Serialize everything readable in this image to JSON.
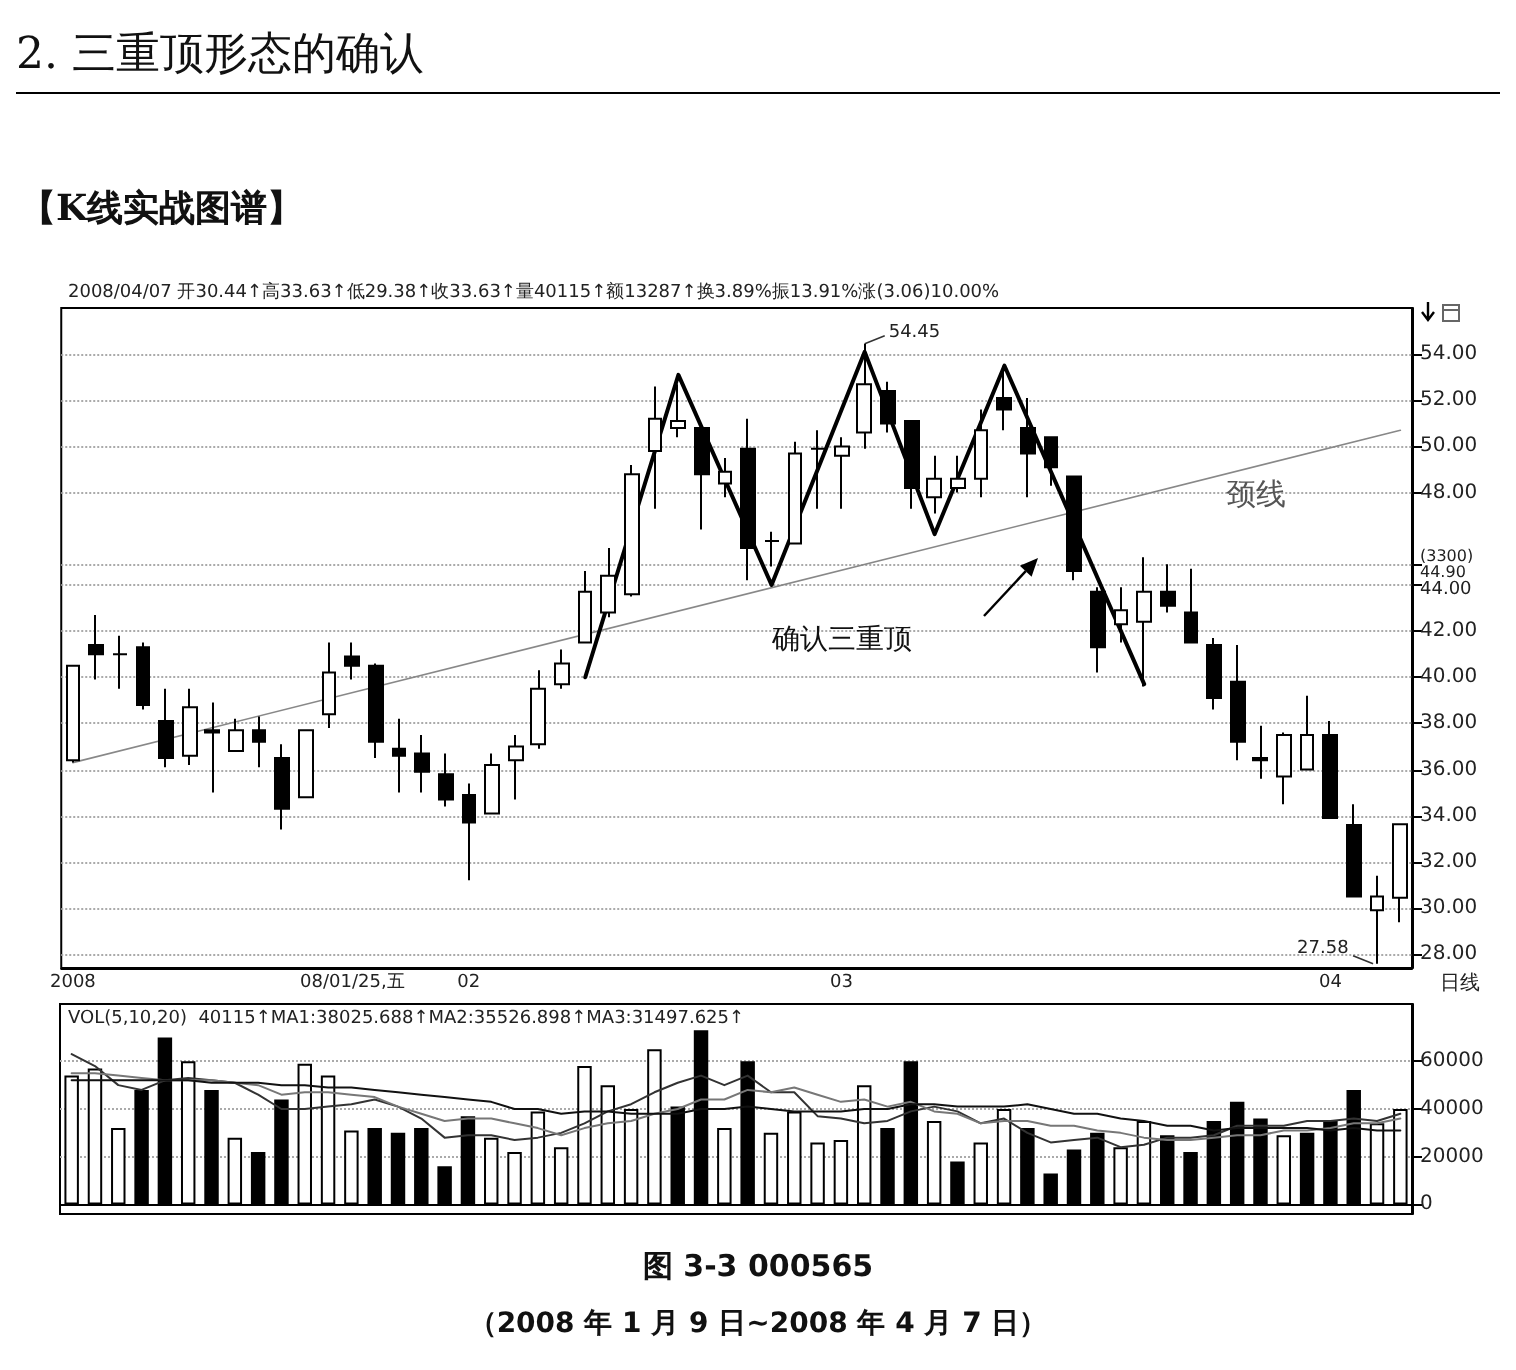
{
  "chart_data": [
    {
      "type": "candlestick",
      "title": "2. 三重顶形态的确认",
      "subtitle": "【K线实战图谱】",
      "categories": [
        "2008",
        null,
        null,
        null,
        null,
        null,
        null,
        null,
        null,
        null,
        null,
        null,
        "08/01/25,五",
        null,
        null,
        null,
        null,
        "02",
        null,
        null,
        null,
        null,
        null,
        null,
        null,
        null,
        null,
        null,
        null,
        null,
        null,
        null,
        null,
        "03",
        null,
        null,
        null,
        null,
        null,
        null,
        null,
        null,
        null,
        null,
        null,
        null,
        null,
        null,
        null,
        null,
        null,
        null,
        null,
        null,
        "04",
        null,
        null,
        null
      ],
      "series": [
        {
          "type": "candlestick",
          "color": "#000000",
          "ohlc": [
            [
              36.4,
              40.5,
              36.3,
              40.5
            ],
            [
              41.4,
              42.7,
              39.9,
              41.0
            ],
            [
              41.0,
              41.8,
              39.5,
              41.0
            ],
            [
              41.3,
              41.5,
              38.6,
              38.8
            ],
            [
              38.1,
              39.5,
              36.1,
              36.5
            ],
            [
              36.6,
              39.5,
              36.2,
              38.7
            ],
            [
              37.7,
              38.9,
              35.0,
              37.6
            ],
            [
              36.8,
              38.2,
              36.8,
              37.7
            ],
            [
              37.7,
              38.3,
              36.1,
              37.2
            ],
            [
              36.5,
              37.1,
              33.4,
              34.3
            ],
            [
              34.8,
              37.7,
              34.8,
              37.7
            ],
            [
              38.4,
              41.5,
              37.8,
              40.2
            ],
            [
              40.9,
              41.5,
              39.9,
              40.5
            ],
            [
              40.5,
              40.6,
              36.5,
              37.2
            ],
            [
              36.9,
              38.2,
              35.0,
              36.6
            ],
            [
              36.7,
              37.5,
              35.0,
              35.9
            ],
            [
              35.8,
              36.7,
              34.4,
              34.7
            ],
            [
              34.9,
              35.4,
              31.2,
              33.7
            ],
            [
              34.1,
              36.7,
              34.1,
              36.2
            ],
            [
              36.4,
              37.5,
              34.7,
              37.0
            ],
            [
              37.1,
              40.3,
              36.9,
              39.5
            ],
            [
              39.7,
              41.2,
              39.5,
              40.6
            ],
            [
              41.5,
              44.6,
              41.5,
              43.7
            ],
            [
              42.8,
              45.6,
              42.6,
              44.4
            ],
            [
              43.6,
              49.2,
              43.5,
              48.8
            ],
            [
              49.8,
              52.6,
              47.3,
              51.2
            ],
            [
              50.8,
              52.7,
              50.4,
              51.1
            ],
            [
              50.8,
              50.8,
              46.4,
              48.8
            ],
            [
              48.4,
              49.5,
              47.8,
              48.9
            ],
            [
              49.9,
              51.2,
              44.2,
              45.6
            ],
            [
              45.9,
              46.3,
              44.8,
              45.9
            ],
            [
              45.8,
              50.2,
              45.8,
              49.7
            ],
            [
              49.9,
              50.7,
              47.3,
              49.9
            ],
            [
              49.6,
              50.4,
              47.3,
              50.0
            ],
            [
              50.6,
              54.45,
              49.9,
              52.7
            ],
            [
              52.4,
              52.8,
              50.6,
              51.0
            ],
            [
              51.1,
              51.1,
              47.3,
              48.2
            ],
            [
              47.8,
              49.6,
              47.1,
              48.6
            ],
            [
              48.2,
              49.6,
              48.0,
              48.6
            ],
            [
              48.6,
              51.6,
              47.8,
              50.7
            ],
            [
              52.1,
              53.5,
              50.7,
              51.6
            ],
            [
              50.8,
              52.1,
              47.8,
              49.7
            ],
            [
              50.4,
              50.4,
              48.3,
              49.1
            ],
            [
              48.7,
              48.7,
              44.2,
              44.6
            ],
            [
              43.7,
              43.9,
              40.2,
              41.3
            ],
            [
              42.3,
              43.9,
              41.5,
              42.9
            ],
            [
              42.4,
              45.2,
              39.6,
              43.7
            ],
            [
              43.7,
              44.9,
              42.8,
              43.1
            ],
            [
              42.8,
              44.7,
              41.5,
              41.5
            ],
            [
              41.4,
              41.7,
              38.6,
              39.1
            ],
            [
              39.8,
              41.4,
              36.4,
              37.2
            ],
            [
              36.5,
              37.9,
              35.6,
              36.4
            ],
            [
              35.7,
              37.6,
              34.5,
              37.5
            ],
            [
              36.0,
              39.2,
              36.0,
              37.5
            ],
            [
              37.5,
              38.1,
              33.9,
              33.9
            ],
            [
              33.6,
              34.5,
              30.5,
              30.5
            ],
            [
              29.9,
              31.4,
              27.58,
              30.5
            ],
            [
              30.44,
              33.63,
              29.38,
              33.63
            ]
          ]
        },
        {
          "type": "line",
          "name": "颈线",
          "color": "#888888",
          "values": [
            36.3,
            null,
            null,
            null,
            null,
            null,
            null,
            null,
            null,
            null,
            null,
            null,
            null,
            null,
            null,
            null,
            null,
            null,
            null,
            null,
            null,
            null,
            null,
            null,
            null,
            null,
            null,
            null,
            null,
            null,
            null,
            null,
            null,
            null,
            null,
            null,
            null,
            null,
            null,
            null,
            null,
            null,
            null,
            null,
            null,
            null,
            null,
            null,
            null,
            null,
            null,
            null,
            null,
            null,
            null,
            null,
            null,
            50.7
          ]
        },
        {
          "type": "line",
          "color": "#000000",
          "values": [
            null,
            null,
            null,
            null,
            null,
            null,
            null,
            null,
            null,
            null,
            null,
            null,
            null,
            null,
            null,
            null,
            null,
            null,
            null,
            null,
            null,
            null,
            40.0,
            null,
            null,
            null,
            53.1,
            null,
            null,
            null,
            44.0,
            null,
            null,
            null,
            54.1,
            null,
            null,
            46.2,
            null,
            null,
            53.5,
            null,
            null,
            null,
            null,
            null,
            39.7,
            null,
            null,
            null,
            null,
            null,
            null,
            null,
            null,
            null,
            null,
            null
          ]
        }
      ],
      "ylim": [
        27.4,
        56
      ],
      "yticks": [
        {
          "value": 28,
          "label": "28.00"
        },
        {
          "value": 30,
          "label": "30.00"
        },
        {
          "value": 32,
          "label": "32.00"
        },
        {
          "value": 34,
          "label": "34.00"
        },
        {
          "value": 36,
          "label": "36.00"
        },
        {
          "value": 38,
          "label": "38.00"
        },
        {
          "value": 40,
          "label": "40.00"
        },
        {
          "value": 42,
          "label": "42.00"
        },
        {
          "value": 44,
          "label": "44.00"
        },
        {
          "value": 44.9,
          "label": "(3300)\n44.90"
        },
        {
          "value": 48,
          "label": "48.00"
        },
        {
          "value": 50,
          "label": "50.00"
        },
        {
          "value": 52,
          "label": "52.00"
        },
        {
          "value": 54,
          "label": "54.00"
        }
      ],
      "grid": "y",
      "marker": "none",
      "line_style": "solid",
      "annotations": [
        "2008/04/07 开30.44↑高33.63↑低29.38↑收33.63↑量40115↑额13287↑换3.89%振13.91%涨(3.06)10.00%",
        "54.45",
        "27.58",
        "确认三重顶",
        "日线"
      ]
    },
    {
      "type": "bar",
      "categories": [
        null,
        null,
        null,
        null,
        null,
        null,
        null,
        null,
        null,
        null,
        null,
        null,
        null,
        null,
        null,
        null,
        null,
        null,
        null,
        null,
        null,
        null,
        null,
        null,
        null,
        null,
        null,
        null,
        null,
        null,
        null,
        null,
        null,
        null,
        null,
        null,
        null,
        null,
        null,
        null,
        null,
        null,
        null,
        null,
        null,
        null,
        null,
        null,
        null,
        null,
        null,
        null,
        null,
        null,
        null,
        null,
        null,
        null
      ],
      "series": [
        {
          "type": "bar",
          "color": "#000000",
          "values": [
            54000,
            57000,
            32000,
            48000,
            70000,
            60000,
            48000,
            28000,
            22000,
            44000,
            59000,
            54000,
            31000,
            32000,
            30000,
            32000,
            16000,
            37000,
            28000,
            22000,
            39000,
            24000,
            58000,
            50000,
            40000,
            65000,
            41000,
            73000,
            32000,
            60000,
            30000,
            39000,
            26000,
            27000,
            50000,
            32000,
            60000,
            35000,
            18000,
            26000,
            40000,
            32000,
            13000,
            23000,
            30000,
            24000,
            35000,
            29000,
            22000,
            35000,
            43000,
            36000,
            29000,
            30000,
            35000,
            48000,
            34000,
            40000
          ],
          "colors": [
            "#ffffff",
            "#ffffff",
            "#ffffff",
            "#000000",
            "#000000",
            "#ffffff",
            "#000000",
            "#ffffff",
            "#000000",
            "#000000",
            "#ffffff",
            "#ffffff",
            "#ffffff",
            "#000000",
            "#000000",
            "#000000",
            "#000000",
            "#000000",
            "#ffffff",
            "#ffffff",
            "#ffffff",
            "#ffffff",
            "#ffffff",
            "#ffffff",
            "#ffffff",
            "#ffffff",
            "#000000",
            "#000000",
            "#ffffff",
            "#000000",
            "#ffffff",
            "#ffffff",
            "#ffffff",
            "#ffffff",
            "#ffffff",
            "#000000",
            "#000000",
            "#ffffff",
            "#000000",
            "#ffffff",
            "#ffffff",
            "#000000",
            "#000000",
            "#000000",
            "#000000",
            "#ffffff",
            "#ffffff",
            "#000000",
            "#000000",
            "#000000",
            "#000000",
            "#000000",
            "#ffffff",
            "#000000",
            "#000000",
            "#000000",
            "#ffffff",
            "#ffffff"
          ]
        },
        {
          "type": "line",
          "color": "#333333",
          "values": [
            63000,
            58000,
            50000,
            48000,
            52000,
            53000,
            52000,
            51000,
            46000,
            40000,
            40000,
            41000,
            42000,
            44000,
            41000,
            36000,
            28000,
            29000,
            29000,
            27000,
            28000,
            30000,
            34000,
            39000,
            42000,
            47000,
            51000,
            54000,
            50000,
            54000,
            47000,
            47000,
            37000,
            36000,
            34000,
            35000,
            39000,
            41000,
            39000,
            34000,
            36000,
            30000,
            26000,
            27000,
            28000,
            24000,
            25000,
            28000,
            28000,
            29000,
            33000,
            33000,
            33000,
            35000,
            35000,
            36000,
            35000,
            38000
          ]
        },
        {
          "type": "line",
          "color": "#777777",
          "values": [
            55000,
            55000,
            54000,
            53000,
            52000,
            52000,
            52000,
            51000,
            50000,
            46000,
            47000,
            47000,
            46000,
            45000,
            41000,
            38000,
            35000,
            36000,
            36000,
            34000,
            32000,
            29000,
            32000,
            34000,
            35000,
            38000,
            40000,
            44000,
            44000,
            48000,
            47000,
            49000,
            46000,
            43000,
            44000,
            41000,
            43000,
            39000,
            38000,
            34000,
            35000,
            35000,
            33000,
            33000,
            31000,
            30000,
            28000,
            27000,
            27000,
            28000,
            29000,
            29000,
            31000,
            31000,
            32000,
            34000,
            34000,
            36000
          ]
        },
        {
          "type": "line",
          "color": "#111111",
          "values": [
            52000,
            52000,
            52000,
            52000,
            52000,
            52000,
            51000,
            51000,
            51000,
            50000,
            50000,
            49000,
            49000,
            48000,
            47000,
            46000,
            45000,
            44000,
            43000,
            40000,
            40000,
            38000,
            39000,
            39000,
            38000,
            38000,
            38000,
            40000,
            40000,
            41000,
            40000,
            39000,
            39000,
            39000,
            40000,
            40000,
            42000,
            42000,
            41000,
            41000,
            41000,
            42000,
            40000,
            38000,
            38000,
            36000,
            35000,
            33000,
            33000,
            31000,
            32000,
            32000,
            32000,
            32000,
            31000,
            32000,
            31000,
            31000
          ]
        }
      ],
      "ylim": [
        -4000,
        84000
      ],
      "yticks": [
        0,
        20000,
        40000,
        60000
      ],
      "grid": "y",
      "marker": "none",
      "annotations": [
        "VOL(5,10,20)  40115↑MA1:38025.688↑MA2:35526.898↑MA3:31497.625↑",
        "图 3-3    000565",
        "（2008 年 1 月 9 日~2008 年 4 月 7 日）"
      ]
    }
  ]
}
